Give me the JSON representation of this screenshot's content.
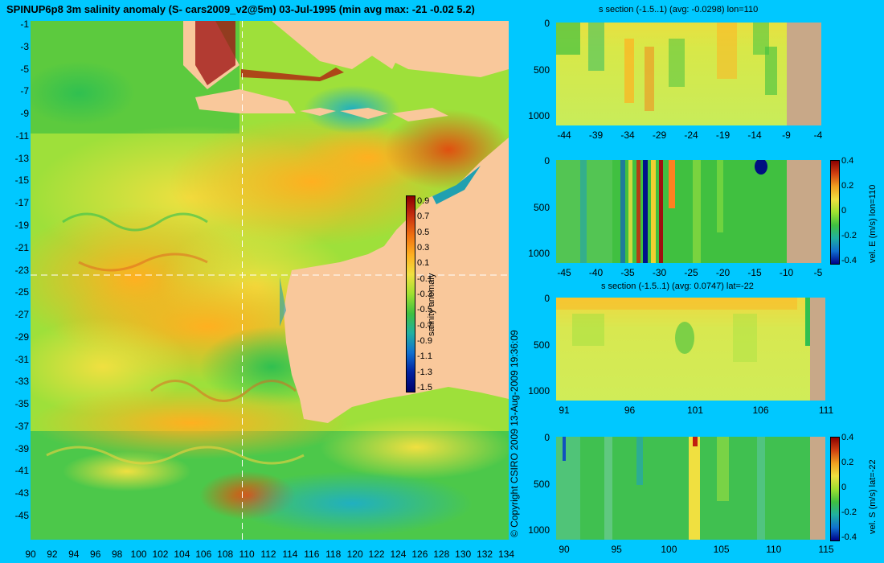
{
  "title": "SPINUP6p8 3m salinity anomaly (S- cars2009_v2@5m) 03-Jul-1995 (min avg max: -21 -0.02 5.2)",
  "map": {
    "lat_ticks": [
      "-1",
      "-3",
      "-5",
      "-7",
      "-9",
      "-11",
      "-13",
      "-15",
      "-17",
      "-19",
      "-21",
      "-23",
      "-25",
      "-27",
      "-29",
      "-31",
      "-33",
      "-35",
      "-37",
      "-39",
      "-41",
      "-43",
      "-45"
    ],
    "lon_ticks": [
      "90",
      "92",
      "94",
      "96",
      "98",
      "100",
      "102",
      "104",
      "106",
      "108",
      "110",
      "112",
      "114",
      "116",
      "118",
      "120",
      "122",
      "124",
      "126",
      "128",
      "130",
      "132",
      "134"
    ],
    "colorbar_ticks": [
      "0.9",
      "0.7",
      "0.5",
      "0.3",
      "0.1",
      "-0.1",
      "-0.3",
      "-0.5",
      "-0.7",
      "-0.9",
      "-1.1",
      "-1.3",
      "-1.5"
    ],
    "colorbar_label": "salinity anomaly",
    "crosshair_lon": 110,
    "crosshair_lat": -22
  },
  "copyright": "© Copyright CSIRO 2009   13-Aug-2009 19:36:09",
  "panels": {
    "p1": {
      "title": "s section (-1.5..1) (avg: -0.0298) lon=110",
      "y_ticks": [
        "0",
        "500",
        "1000"
      ],
      "x_ticks": [
        "-44",
        "-39",
        "-34",
        "-29",
        "-24",
        "-19",
        "-14",
        "-9",
        "-4"
      ]
    },
    "p2": {
      "title": "",
      "y_ticks": [
        "0",
        "500",
        "1000"
      ],
      "x_ticks": [
        "-45",
        "-40",
        "-35",
        "-30",
        "-25",
        "-20",
        "-15",
        "-10",
        "-5"
      ],
      "cbar_ticks": [
        "0.4",
        "0.2",
        "0",
        "-0.2",
        "-0.4"
      ],
      "cbar_label": "vel. E (m/s) lon=110"
    },
    "p3": {
      "title": "s section (-1.5..1) (avg: 0.0747) lat=-22",
      "y_ticks": [
        "0",
        "500",
        "1000"
      ],
      "x_ticks": [
        "91",
        "96",
        "101",
        "106",
        "111"
      ]
    },
    "p4": {
      "title": "",
      "y_ticks": [
        "0",
        "500",
        "1000"
      ],
      "x_ticks": [
        "90",
        "95",
        "100",
        "105",
        "110",
        "115"
      ],
      "cbar_ticks": [
        "0.4",
        "0.2",
        "0",
        "-0.2",
        "-0.4"
      ],
      "cbar_label": "vel. S (m/s) lat=-22"
    }
  },
  "colors": {
    "background": "#00c8ff",
    "land": "#f9c89b",
    "section_land": "#c8a888",
    "crosshair": "#ffffff"
  }
}
